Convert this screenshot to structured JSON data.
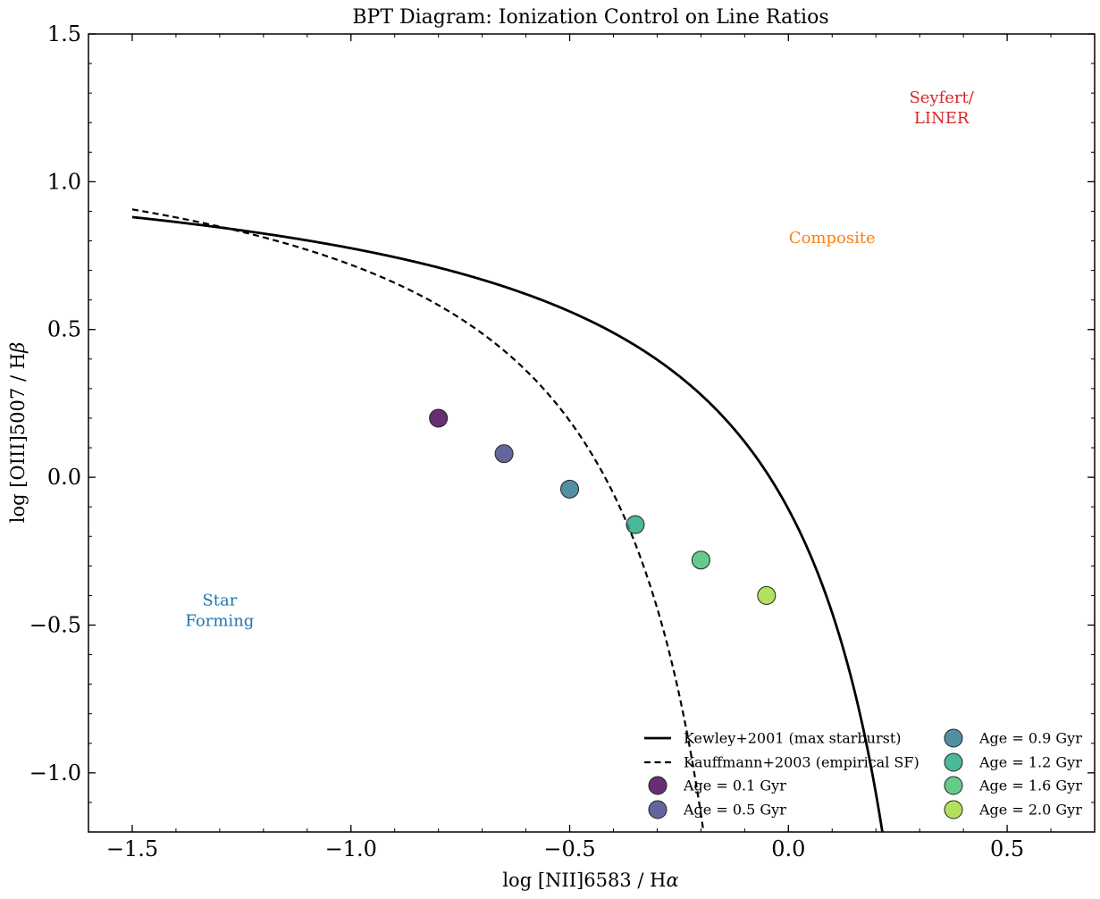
{
  "chart_data": {
    "type": "scatter",
    "title": "BPT Diagram: Ionization Control on Line Ratios",
    "xlabel": "log [NII]6583 / Hα",
    "ylabel": "log [OIII]5007 / Hβ",
    "xlim": [
      -1.6,
      0.7
    ],
    "ylim": [
      -1.2,
      1.5
    ],
    "xticks": [
      -1.5,
      -1.0,
      -0.5,
      0.0,
      0.5
    ],
    "xtick_labels": [
      "−1.5",
      "−1.0",
      "−0.5",
      "0.0",
      "0.5"
    ],
    "yticks": [
      -1.0,
      -0.5,
      0.0,
      0.5,
      1.0,
      1.5
    ],
    "ytick_labels": [
      "−1.0",
      "−0.5",
      "0.0",
      "0.5",
      "1.0",
      "1.5"
    ],
    "grid": false,
    "lines": [
      {
        "name": "Kewley+2001 (max starburst)",
        "style": "solid",
        "color": "#000000",
        "x_start": -1.5,
        "x_asymptote": 0.47
      },
      {
        "name": "Kauffmann+2003 (empirical SF)",
        "style": "dashed",
        "color": "#000000",
        "x_start": -1.5,
        "x_asymptote": 0.05
      }
    ],
    "series": [
      {
        "name": "Age = 0.1 Gyr",
        "x": -0.8,
        "y": 0.2,
        "color": "#440154"
      },
      {
        "name": "Age = 0.5 Gyr",
        "x": -0.65,
        "y": 0.08,
        "color": "#414487"
      },
      {
        "name": "Age = 0.9 Gyr",
        "x": -0.5,
        "y": -0.04,
        "color": "#2a788e"
      },
      {
        "name": "Age = 1.2 Gyr",
        "x": -0.35,
        "y": -0.16,
        "color": "#22a884"
      },
      {
        "name": "Age = 1.6 Gyr",
        "x": -0.2,
        "y": -0.28,
        "color": "#44bf70"
      },
      {
        "name": "Age = 2.0 Gyr",
        "x": -0.05,
        "y": -0.4,
        "color": "#a0da39"
      }
    ],
    "annotations": [
      {
        "lines": [
          "Star",
          "Forming"
        ],
        "x": -1.3,
        "y": -0.45,
        "color": "#1f77b4"
      },
      {
        "lines": [
          "Composite"
        ],
        "x": 0.1,
        "y": 0.81,
        "color": "#ff7f0e"
      },
      {
        "lines": [
          "Seyfert/",
          "LINER"
        ],
        "x": 0.35,
        "y": 1.25,
        "color": "#d62728"
      }
    ],
    "legend_placement": "lower-right"
  }
}
